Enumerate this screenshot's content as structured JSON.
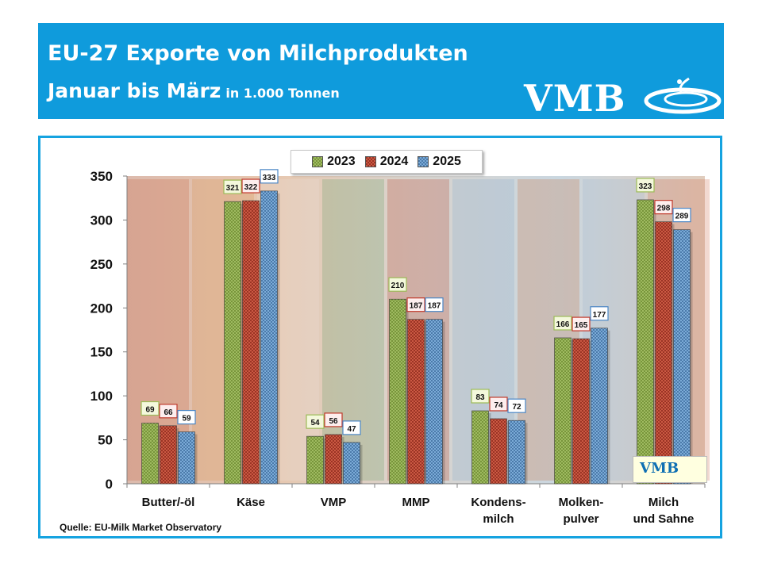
{
  "header": {
    "title_line1": "EU-27  Exporte von Milchprodukten",
    "title_line2": "Januar bis März",
    "unit": "in 1.000 Tonnen",
    "logo_text": "VMB",
    "logo_icon": "vmb-swirl-logo"
  },
  "source": "Quelle: EU-Milk Market Observatory",
  "mini_logo_text": "VMB",
  "colors": {
    "header_bg": "#0f9bdc",
    "frame_border": "#15a3e0",
    "series_2023": "#9cbb58",
    "series_2024": "#d0503c",
    "series_2025": "#6fa5d8"
  },
  "chart_data": {
    "type": "bar",
    "categories": [
      [
        "Butter/-öl"
      ],
      [
        "Käse"
      ],
      [
        "VMP"
      ],
      [
        "MMP"
      ],
      [
        "Kondens-",
        "milch"
      ],
      [
        "Molken-",
        "pulver"
      ],
      [
        "Milch",
        "und Sahne"
      ]
    ],
    "series": [
      {
        "name": "2023",
        "values": [
          69,
          321,
          54,
          210,
          83,
          166,
          323
        ]
      },
      {
        "name": "2024",
        "values": [
          66,
          322,
          56,
          187,
          74,
          165,
          298
        ]
      },
      {
        "name": "2025",
        "values": [
          59,
          333,
          47,
          187,
          72,
          177,
          289
        ]
      }
    ],
    "ylim": [
      0,
      350
    ],
    "yticks": [
      0,
      50,
      100,
      150,
      200,
      250,
      300,
      350
    ],
    "legend_position": "top-center",
    "data_labels": true,
    "grid": false
  }
}
